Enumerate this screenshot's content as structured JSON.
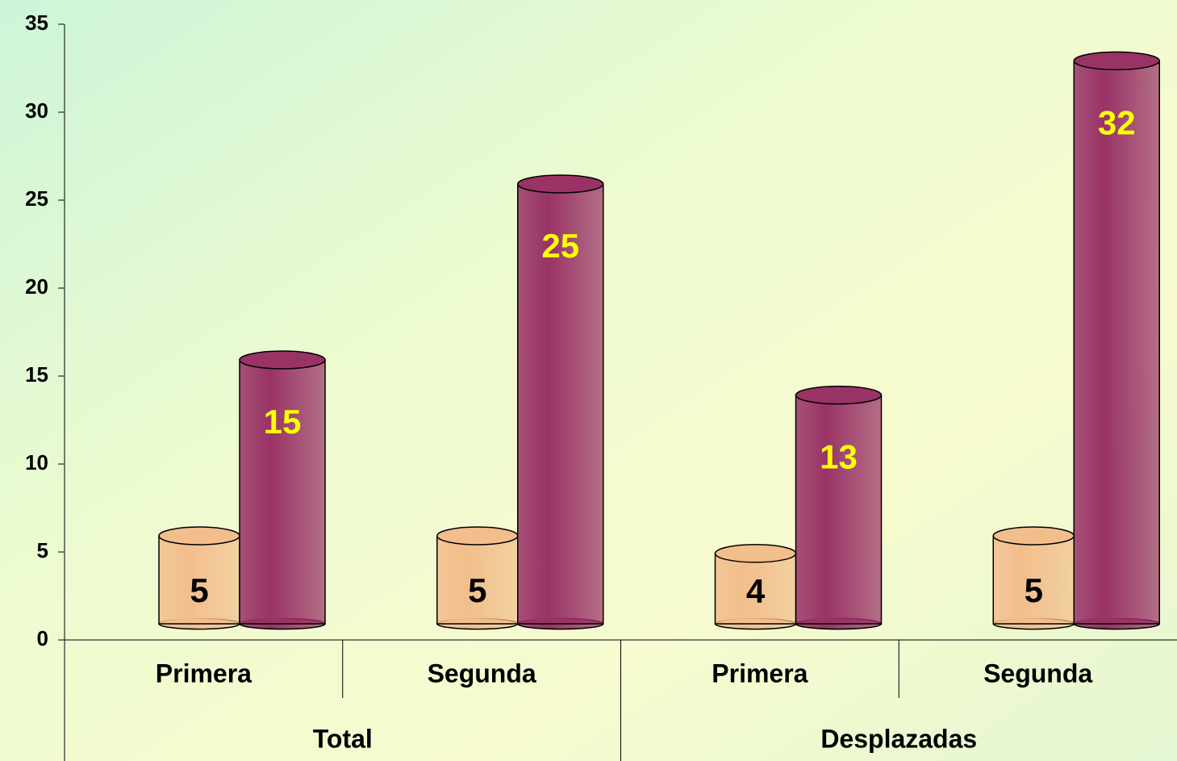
{
  "chart_data": {
    "type": "bar",
    "categories": [
      "Primera",
      "Segunda",
      "Primera",
      "Segunda"
    ],
    "groups": [
      "Total",
      "Desplazadas"
    ],
    "series": [
      {
        "color": "#f2be8c",
        "values": [
          5,
          5,
          4,
          5
        ]
      },
      {
        "color": "#993366",
        "values": [
          15,
          25,
          13,
          32
        ]
      }
    ],
    "ylim": [
      0,
      35
    ],
    "yticks": [
      0,
      5,
      10,
      15,
      20,
      25,
      30,
      35
    ]
  }
}
